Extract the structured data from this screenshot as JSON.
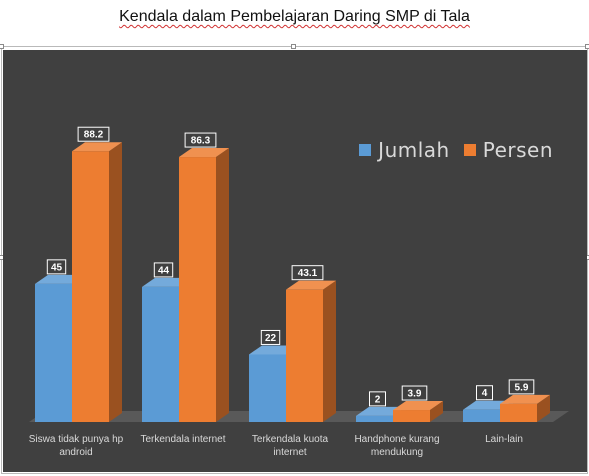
{
  "document": {
    "title": "Kendala dalam Pembelajaran Daring SMP  di Tala"
  },
  "colors": {
    "chart_background": "#404040",
    "jumlah": "#5b9bd5",
    "persen": "#ed7d31",
    "label_text": "#d9d9d9"
  },
  "chart_data": {
    "type": "bar",
    "variant": "3d-clustered-column",
    "categories": [
      "Siswa tidak punya hp android",
      "Terkendala internet",
      "Terkendala kuota internet",
      "Handphone kurang mendukung",
      "Lain-lain"
    ],
    "category_label_lines": [
      [
        "Siswa tidak punya hp",
        "android"
      ],
      [
        "Terkendala internet"
      ],
      [
        "Terkendala kuota",
        "internet"
      ],
      [
        "Handphone kurang",
        "mendukung"
      ],
      [
        "Lain-lain"
      ]
    ],
    "series": [
      {
        "name": "Jumlah",
        "values": [
          45,
          44,
          22,
          2,
          4
        ],
        "value_labels": [
          "45",
          "44",
          "22",
          "2",
          "4"
        ],
        "color": "#5b9bd5"
      },
      {
        "name": "Persen",
        "values": [
          88.2,
          86.3,
          43.1,
          3.9,
          5.9
        ],
        "value_labels": [
          "88.2",
          "86.3",
          "43.1",
          "3.9",
          "5.9"
        ],
        "color": "#ed7d31"
      }
    ],
    "ylim": [
      0,
      100
    ],
    "grid": false,
    "legend": "top-right",
    "data_labels": true
  }
}
